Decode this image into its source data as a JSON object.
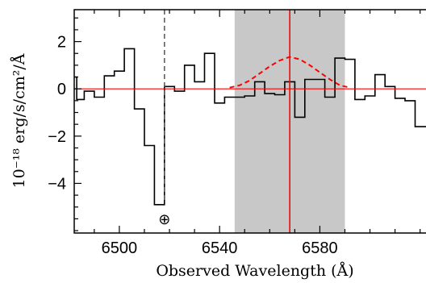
{
  "chart_data": {
    "type": "line",
    "title": "",
    "xlabel": "Observed Wavelength (Å)",
    "ylabel": "10⁻¹⁸ erg/s/cm²/Å",
    "xlim": [
      6482,
      6623
    ],
    "ylim": [
      -6.1,
      3.35
    ],
    "x_ticks": [
      6500,
      6540,
      6580
    ],
    "y_ticks": [
      2,
      0,
      -2,
      -4
    ],
    "x_tick_labels": [
      "6500",
      "6540",
      "6580"
    ],
    "y_tick_labels": [
      "2",
      "0",
      "−2",
      "−4"
    ],
    "grid": false,
    "shaded_band": {
      "x_range": [
        6546,
        6590
      ],
      "color": "#c8c8c8"
    },
    "vertical_lines": [
      {
        "x": 6568,
        "style": "solid",
        "color": "#ff0000"
      },
      {
        "x": 6518,
        "style": "dashed",
        "color": "#555555",
        "marker": "⊕"
      }
    ],
    "horizontal_lines": [
      {
        "y": 0,
        "style": "solid",
        "color": "#ff0000"
      }
    ],
    "series": [
      {
        "style": "steps",
        "color": "#000000",
        "edges": [
          6482,
          6483,
          6486,
          6490,
          6494,
          6498,
          6502,
          6506,
          6510,
          6514,
          6518,
          6522,
          6526,
          6530,
          6534,
          6538,
          6542,
          6546,
          6550,
          6554,
          6558,
          6562,
          6566,
          6570,
          6574,
          6578,
          6582,
          6586,
          6590,
          6594,
          6598,
          6602,
          6606,
          6610,
          6614,
          6618,
          6623
        ],
        "values": [
          0.5,
          -0.45,
          -0.1,
          -0.35,
          0.55,
          0.75,
          1.7,
          -0.85,
          -2.4,
          -4.9,
          0.1,
          -0.1,
          1.0,
          0.3,
          1.5,
          -0.6,
          -0.35,
          -0.35,
          -0.3,
          0.3,
          -0.2,
          -0.25,
          0.3,
          -1.2,
          0.4,
          0.4,
          -0.35,
          1.3,
          1.25,
          -0.45,
          -0.3,
          0.6,
          0.1,
          -0.4,
          -0.5,
          -1.6
        ]
      },
      {
        "style": "dashed",
        "color": "#ff0000",
        "x": [
          6544,
          6548,
          6552,
          6556,
          6560,
          6564,
          6568,
          6572,
          6576,
          6580,
          6584,
          6588,
          6592
        ],
        "y": [
          0.05,
          0.15,
          0.35,
          0.65,
          0.95,
          1.2,
          1.35,
          1.25,
          1.0,
          0.7,
          0.4,
          0.15,
          0.05
        ]
      }
    ]
  }
}
